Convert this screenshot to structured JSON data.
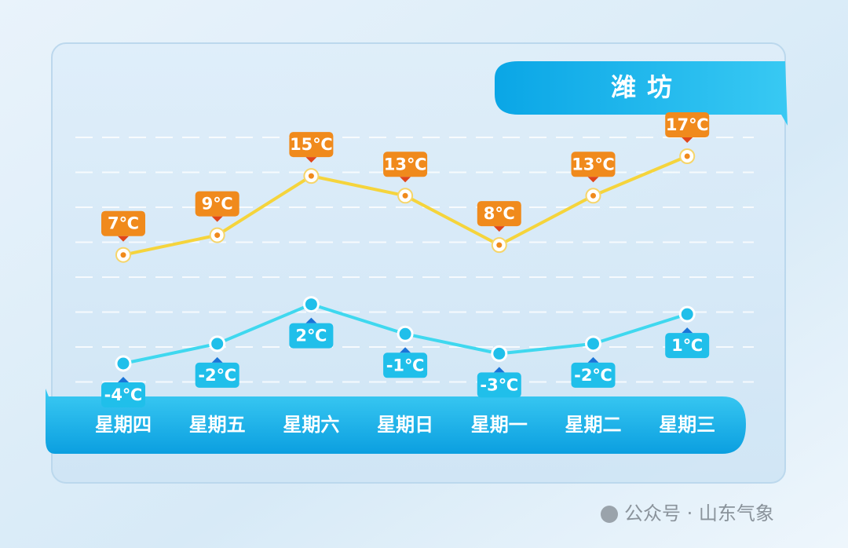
{
  "chart_data": {
    "type": "line",
    "title": "潍坊",
    "categories": [
      "星期四",
      "星期五",
      "星期六",
      "星期日",
      "星期一",
      "星期二",
      "星期三"
    ],
    "series": [
      {
        "color": "#f5d43c",
        "marker_color": "#f08a1c",
        "values": [
          7,
          9,
          15,
          13,
          8,
          13,
          17
        ],
        "value_labels": [
          "7℃",
          "9℃",
          "15℃",
          "13℃",
          "8℃",
          "13℃",
          "17℃"
        ],
        "label_position": "above"
      },
      {
        "color": "#3fd8ef",
        "marker_color": "#20bfea",
        "values": [
          -4,
          -2,
          2,
          -1,
          -3,
          -2,
          1
        ],
        "value_labels": [
          "-4℃",
          "-2℃",
          "2℃",
          "-1℃",
          "-3℃",
          "-2℃",
          "1℃"
        ],
        "label_position": "below"
      }
    ]
  },
  "watermark": "公众号 · 山东气象"
}
